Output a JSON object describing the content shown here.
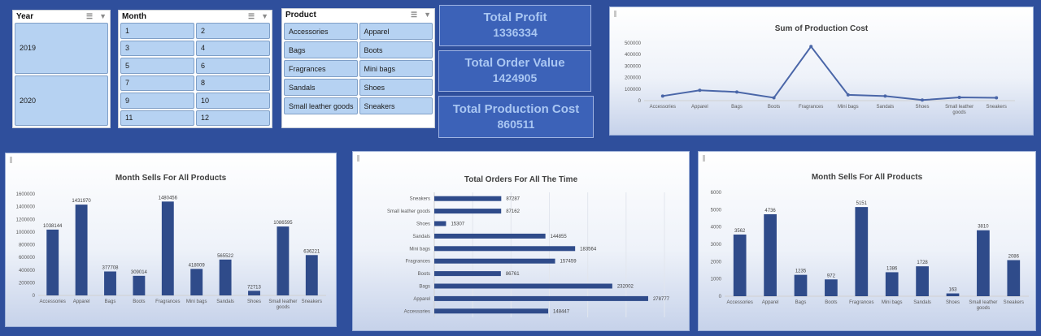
{
  "slicers": {
    "year": {
      "title": "Year",
      "items": [
        "2019",
        "2020"
      ]
    },
    "month": {
      "title": "Month",
      "items": [
        "1",
        "2",
        "3",
        "4",
        "5",
        "6",
        "7",
        "8",
        "9",
        "10",
        "11",
        "12"
      ]
    },
    "product": {
      "title": "Product",
      "items": [
        "Accessories",
        "Apparel",
        "Bags",
        "Boots",
        "Fragrances",
        "Mini bags",
        "Sandals",
        "Shoes",
        "Small leather goods",
        "Sneakers"
      ]
    }
  },
  "kpis": [
    {
      "title": "Total Profit",
      "value": "1336334"
    },
    {
      "title": "Total Order Value",
      "value": "1424905"
    },
    {
      "title": "Total Production Cost",
      "value": "860511"
    }
  ],
  "colors": {
    "bar": "#2f4b8a",
    "line": "#4a66a8",
    "kpi_bg": "#3c62b8",
    "kpi_text": "#a9c6f2",
    "slicer_item": "#b6d2f2"
  },
  "chart_data": [
    {
      "type": "line",
      "title": "Sum of Production Cost",
      "categories": [
        "Accessories",
        "Apparel",
        "Bags",
        "Boots",
        "Fragrances",
        "Mini bags",
        "Sandals",
        "Shoes",
        "Small leather goods",
        "Sneakers"
      ],
      "values": [
        40000,
        90000,
        75000,
        25000,
        470000,
        50000,
        40000,
        5000,
        28000,
        25000
      ],
      "ylim": [
        0,
        500000
      ],
      "yticks": [
        0,
        100000,
        200000,
        300000,
        400000,
        500000
      ],
      "grid": false
    },
    {
      "type": "bar",
      "title": "Month Sells For All Products",
      "categories": [
        "Accessories",
        "Apparel",
        "Bags",
        "Boots",
        "Fragrances",
        "Mini bags",
        "Sandals",
        "Shoes",
        "Small leather goods",
        "Sneakers"
      ],
      "values": [
        1038144,
        1431970,
        377708,
        309014,
        1480456,
        418009,
        565522,
        72713,
        1086595,
        636221
      ],
      "ylim": [
        0,
        1600000
      ],
      "yticks": [
        0,
        200000,
        400000,
        600000,
        800000,
        1000000,
        1200000,
        1400000,
        1600000
      ],
      "grid": false
    },
    {
      "type": "bar",
      "orientation": "horizontal",
      "title": "Total Orders For All The Time",
      "categories": [
        "Accessories",
        "Apparel",
        "Bags",
        "Boots",
        "Fragrances",
        "Mini bags",
        "Sandals",
        "Shoes",
        "Small leather goods",
        "Sneakers"
      ],
      "values": [
        148447,
        278777,
        232002,
        86761,
        157459,
        183564,
        144855,
        15307,
        87162,
        87287
      ],
      "xlim": [
        0,
        300000
      ],
      "grid": true
    },
    {
      "type": "bar",
      "title": "Month Sells For All Products",
      "categories": [
        "Accessories",
        "Apparel",
        "Bags",
        "Boots",
        "Fragrances",
        "Mini bags",
        "Sandals",
        "Shoes",
        "Small leather goods",
        "Sneakers"
      ],
      "values": [
        3562,
        4736,
        1235,
        972,
        5151,
        1386,
        1728,
        163,
        3810,
        2086
      ],
      "ylim": [
        0,
        6000
      ],
      "yticks": [
        0,
        1000,
        2000,
        3000,
        4000,
        5000,
        6000
      ],
      "grid": false
    }
  ]
}
